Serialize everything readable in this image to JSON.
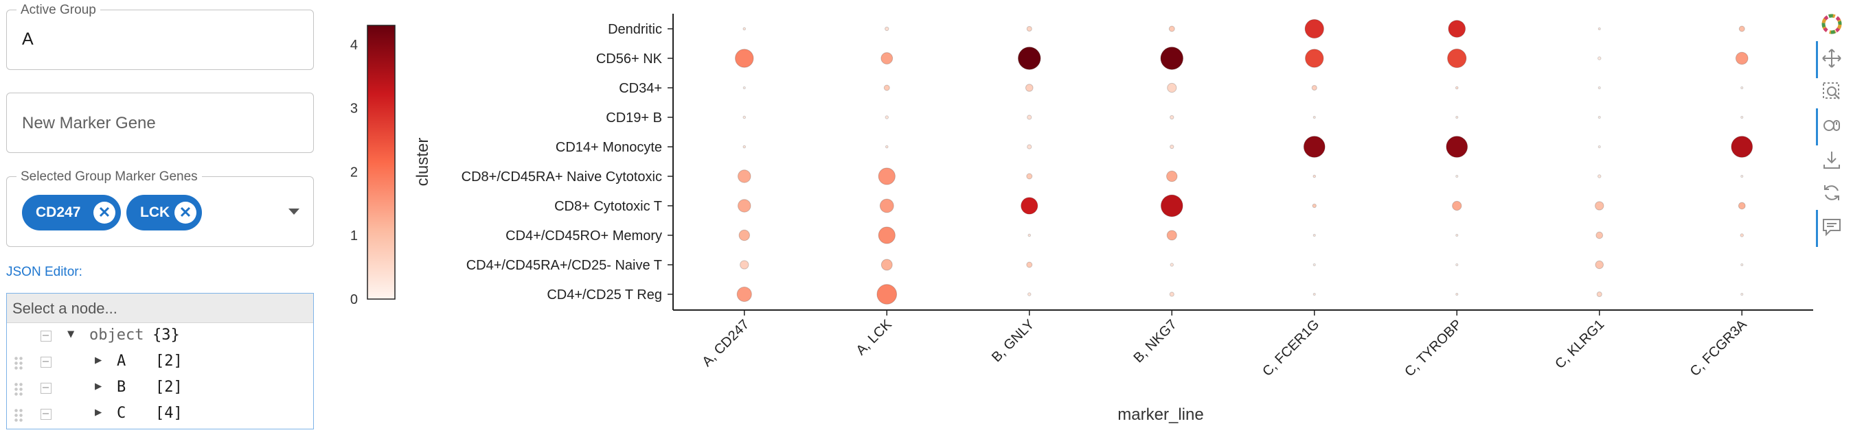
{
  "active_group": {
    "label": "Active Group",
    "value": "A"
  },
  "new_marker": {
    "placeholder": "New Marker Gene"
  },
  "selected_markers": {
    "label": "Selected Group Marker Genes",
    "chips": [
      "CD247",
      "LCK"
    ]
  },
  "json_editor": {
    "label": "JSON Editor:",
    "search_placeholder": "Select a node...",
    "root": {
      "key": "object",
      "count": "{3}"
    },
    "nodes": [
      {
        "key": "A",
        "count": "[2]"
      },
      {
        "key": "B",
        "count": "[2]"
      },
      {
        "key": "C",
        "count": "[4]"
      }
    ]
  },
  "toolbar": {
    "icons": [
      "bokeh-logo-icon",
      "pan-icon",
      "box-zoom-icon",
      "wheel-zoom-icon",
      "save-icon",
      "reset-icon",
      "hover-icon"
    ]
  },
  "chart_data": {
    "type": "scatter",
    "xlabel": "marker_line",
    "colorbar_label": "cluster",
    "colorbar_ticks": [
      "0",
      "1",
      "2",
      "3",
      "4"
    ],
    "colorbar_range": [
      0,
      4.3
    ],
    "x_categories": [
      "A, CD247",
      "A, LCK",
      "B, GNLY",
      "B, NKG7",
      "C, FCER1G",
      "C, TYROBP",
      "C, KLRG1",
      "C, FCGR3A"
    ],
    "y_categories": [
      "Dendritic",
      "CD56+ NK",
      "CD34+",
      "CD19+ B",
      "CD14+ Monocyte",
      "CD8+/CD45RA+ Naive Cytotoxic",
      "CD8+ Cytotoxic T",
      "CD4+/CD45RO+ Memory",
      "CD4+/CD45RA+/CD25- Naive T",
      "CD4+/CD25 T Reg"
    ],
    "points_note": "each row = [size 0-1, color value 0-4.3] per x category",
    "size": [
      [
        0.08,
        0.12,
        0.16,
        0.18,
        0.62,
        0.56,
        0.06,
        0.18
      ],
      [
        0.6,
        0.38,
        0.74,
        0.74,
        0.6,
        0.62,
        0.1,
        0.4
      ],
      [
        0.02,
        0.18,
        0.24,
        0.3,
        0.16,
        0.08,
        0.02,
        0.02
      ],
      [
        0.08,
        0.1,
        0.14,
        0.12,
        0.04,
        0.04,
        0.02,
        0.02
      ],
      [
        0.08,
        0.08,
        0.14,
        0.12,
        0.7,
        0.7,
        0.04,
        0.7
      ],
      [
        0.42,
        0.55,
        0.18,
        0.35,
        0.08,
        0.02,
        0.1,
        0.02
      ],
      [
        0.42,
        0.45,
        0.55,
        0.72,
        0.12,
        0.3,
        0.28,
        0.22
      ],
      [
        0.35,
        0.55,
        0.08,
        0.32,
        0.06,
        0.04,
        0.22,
        0.1
      ],
      [
        0.28,
        0.36,
        0.18,
        0.1,
        0.02,
        0.02,
        0.26,
        0.02
      ],
      [
        0.48,
        0.65,
        0.1,
        0.14,
        0.04,
        0.04,
        0.16,
        0.02
      ]
    ],
    "color": [
      [
        0.3,
        0.4,
        0.6,
        0.8,
        2.9,
        3.0,
        0.2,
        1.0
      ],
      [
        1.8,
        1.4,
        4.3,
        4.2,
        2.6,
        2.6,
        0.2,
        1.5
      ],
      [
        0.1,
        0.8,
        0.7,
        0.6,
        0.7,
        0.4,
        0.1,
        0.1
      ],
      [
        0.2,
        0.3,
        0.4,
        0.4,
        0.2,
        0.2,
        0.1,
        0.1
      ],
      [
        0.3,
        0.3,
        0.4,
        0.4,
        3.9,
        3.9,
        0.1,
        3.5
      ],
      [
        1.3,
        1.6,
        0.8,
        1.3,
        0.4,
        0.1,
        0.3,
        0.1
      ],
      [
        1.3,
        1.5,
        3.2,
        3.4,
        0.8,
        1.3,
        1.0,
        1.2
      ],
      [
        1.2,
        1.7,
        0.3,
        1.3,
        0.2,
        0.2,
        0.9,
        0.5
      ],
      [
        0.7,
        1.2,
        0.8,
        0.3,
        0.1,
        0.1,
        0.9,
        0.1
      ],
      [
        1.5,
        1.8,
        0.3,
        0.5,
        0.2,
        0.2,
        0.6,
        0.1
      ]
    ]
  }
}
